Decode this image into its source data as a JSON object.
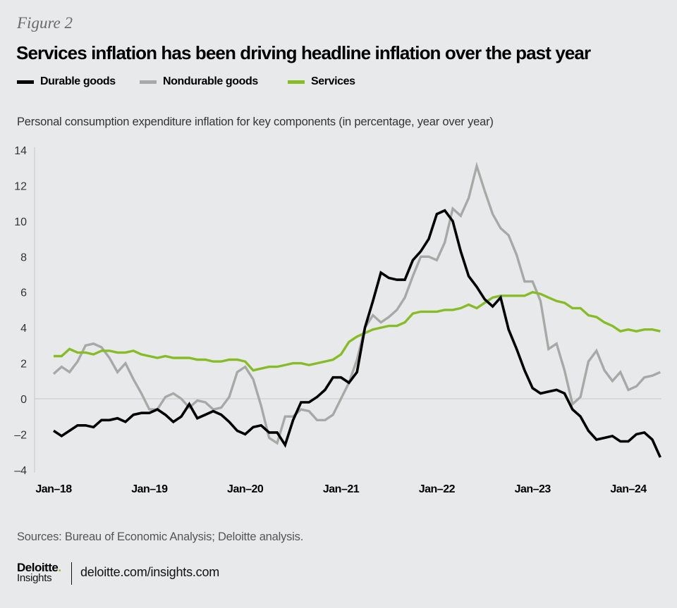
{
  "figure_label": "Figure 2",
  "title": "Services inflation has been driving headline inflation over the past year",
  "subtitle": "Personal consumption expenditure inflation for key components (in percentage, year over year)",
  "source": "Sources: Bureau of Economic Analysis; Deloitte analysis.",
  "footer": {
    "logo_word": "Deloitte",
    "logo_dot": ".",
    "logo_sub": "Insights",
    "link": "deloitte.com/insights.com"
  },
  "colors": {
    "durable": "#000000",
    "nondurable": "#a8a8a6",
    "services": "#86bc25",
    "background": "#e8e9eb",
    "zero_line": "#c8c8c8"
  },
  "chart_data": {
    "type": "line",
    "title": "Services inflation has been driving headline inflation over the past year",
    "xlabel": "",
    "ylabel": "Personal consumption expenditure inflation for key components (in percentage, year over year)",
    "ylim": [
      -4,
      14
    ],
    "yticks": [
      14,
      12,
      10,
      8,
      6,
      4,
      2,
      0,
      -4,
      -2
    ],
    "ytick_labels": [
      "14",
      "12",
      "10",
      "8",
      "6",
      "4",
      "2",
      "0",
      "–4",
      "–2"
    ],
    "xticks": [
      "Jan–18",
      "Jan–19",
      "Jan–20",
      "Jan–21",
      "Jan–22",
      "Jan–23",
      "Jan–24"
    ],
    "x_start": "Jan-2018",
    "x_frequency": "monthly",
    "grid": false,
    "zero_line": true,
    "legend_position": "top-left",
    "series": [
      {
        "name": "Durable goods",
        "color": "#000000",
        "values": [
          -1.8,
          -2.1,
          -1.8,
          -1.5,
          -1.5,
          -1.6,
          -1.2,
          -1.2,
          -1.1,
          -1.3,
          -0.9,
          -0.8,
          -0.8,
          -0.6,
          -0.9,
          -1.3,
          -1.0,
          -0.3,
          -1.1,
          -0.9,
          -0.7,
          -0.9,
          -1.3,
          -1.8,
          -2.0,
          -1.6,
          -1.5,
          -1.9,
          -1.9,
          -2.6,
          -1.2,
          -0.2,
          -0.2,
          0.1,
          0.5,
          1.2,
          1.2,
          0.9,
          1.5,
          4.0,
          5.5,
          7.1,
          6.8,
          6.7,
          6.7,
          7.8,
          8.3,
          9.0,
          10.4,
          10.6,
          10.0,
          8.3,
          6.9,
          6.3,
          5.6,
          5.2,
          5.7,
          3.9,
          2.8,
          1.6,
          0.6,
          0.3,
          0.4,
          0.5,
          0.3,
          -0.6,
          -1.0,
          -1.8,
          -2.3,
          -2.2,
          -2.1,
          -2.4,
          -2.4,
          -2.0,
          -1.9,
          -2.3,
          -3.3
        ]
      },
      {
        "name": "Nondurable goods",
        "color": "#a8a8a6",
        "values": [
          1.4,
          1.8,
          1.5,
          2.1,
          3.0,
          3.1,
          2.9,
          2.3,
          1.5,
          2.0,
          1.1,
          0.3,
          -0.6,
          -0.6,
          0.1,
          0.3,
          0.0,
          -0.5,
          -0.1,
          -0.2,
          -0.6,
          -0.5,
          0.1,
          1.5,
          1.8,
          1.1,
          -0.4,
          -2.2,
          -2.5,
          -1.0,
          -1.0,
          -0.6,
          -0.7,
          -1.2,
          -1.2,
          -0.9,
          0.0,
          0.9,
          2.2,
          4.0,
          4.7,
          4.3,
          4.6,
          5.0,
          5.7,
          6.9,
          8.0,
          8.0,
          7.8,
          8.8,
          10.7,
          10.3,
          11.3,
          13.1,
          11.7,
          10.4,
          9.6,
          9.2,
          8.1,
          6.6,
          6.6,
          5.5,
          2.8,
          3.1,
          1.6,
          -0.3,
          0.1,
          2.1,
          2.7,
          1.6,
          1.0,
          1.5,
          0.5,
          0.7,
          1.2,
          1.3,
          1.5
        ]
      },
      {
        "name": "Services",
        "color": "#86bc25",
        "values": [
          2.4,
          2.4,
          2.8,
          2.6,
          2.6,
          2.5,
          2.7,
          2.7,
          2.6,
          2.6,
          2.7,
          2.5,
          2.4,
          2.3,
          2.4,
          2.3,
          2.3,
          2.3,
          2.2,
          2.2,
          2.1,
          2.1,
          2.2,
          2.2,
          2.1,
          1.6,
          1.7,
          1.8,
          1.8,
          1.9,
          2.0,
          2.0,
          1.9,
          2.0,
          2.1,
          2.2,
          2.5,
          3.2,
          3.5,
          3.7,
          3.9,
          4.0,
          4.1,
          4.1,
          4.3,
          4.8,
          4.9,
          4.9,
          4.9,
          5.0,
          5.0,
          5.1,
          5.3,
          5.1,
          5.4,
          5.7,
          5.8,
          5.8,
          5.8,
          5.8,
          6.0,
          5.9,
          5.7,
          5.5,
          5.4,
          5.1,
          5.1,
          4.7,
          4.6,
          4.3,
          4.1,
          3.8,
          3.9,
          3.8,
          3.9,
          3.9,
          3.8
        ]
      }
    ]
  }
}
